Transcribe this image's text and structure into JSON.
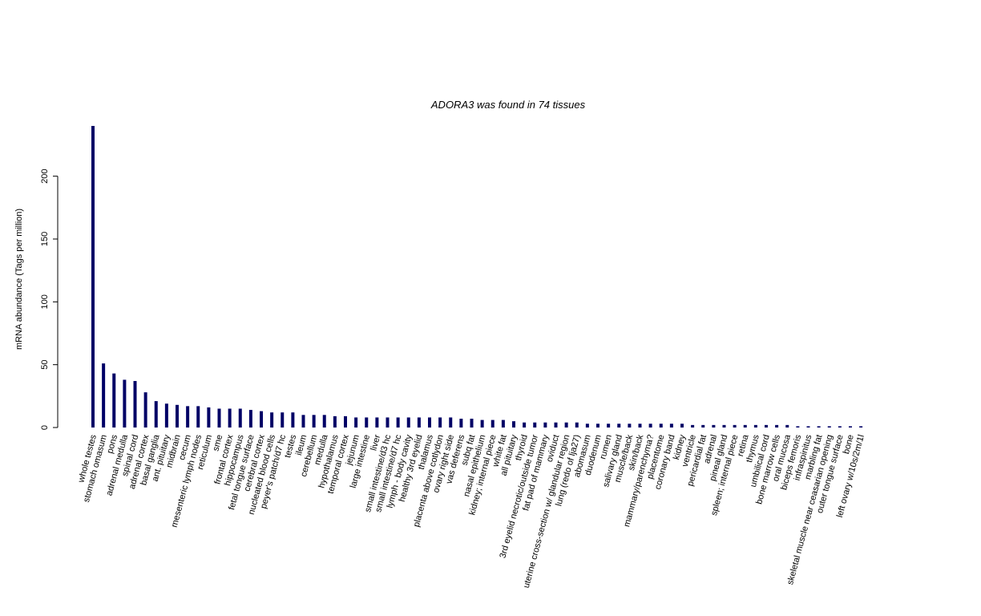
{
  "chart_data": {
    "type": "bar",
    "title": "ADORA3  was found in  74  tissues",
    "xlabel": "",
    "ylabel": "mRNA abundance (Tags per million)",
    "ylim": [
      0,
      240
    ],
    "yticks": [
      0,
      50,
      100,
      150,
      200
    ],
    "bar_color": "#000066",
    "grid": false,
    "categories": [
      "whole testes",
      "stomach omasum",
      "pons",
      "adrenal medulla",
      "spinal cord",
      "adrenal cortex",
      "basal ganglia",
      "ant. pituitary",
      "midbrain",
      "cecum",
      "mesenteric lymph nodes",
      "reticulum",
      "sme",
      "frontal cortex",
      "hippocampus",
      "fetal tongue surface",
      "cerebral cortex",
      "nucleated blood cells",
      "peyer's patch/d7 hc",
      "testes",
      "ileum",
      "cerebellum",
      "medulla",
      "hypothalamus",
      "temporal cortex",
      "jejunum",
      "large intestine",
      "liver",
      "small intestine/d3 hc",
      "small intestine/d7 hc",
      "lymph - body cavity",
      "healthy 3rd eyelid",
      "thalamus",
      "placenta above cotlydon",
      "ovary right side",
      "vas deferens",
      "subq fat",
      "nasal epithelium",
      "kidney; internal piece",
      "white fat",
      "all pituitary",
      "thyroid",
      "3rd eyelid necrotic/outside tumor",
      "fat pad of mammary",
      "oviduct",
      "uterine cross-section w/ glandular region",
      "lung (redo of lja27)",
      "abomasum",
      "duodenum",
      "rumen",
      "salivary gland",
      "muscle/back",
      "skin/back",
      "mammary/parenchyma?",
      "placentome",
      "coronary band",
      "kidney",
      "ventricle",
      "pericardial fat",
      "adrenal",
      "pineal gland",
      "spleen; internal piece",
      "retina",
      "thymus",
      "umbilical cord",
      "bone marrow cells",
      "oral mucosa",
      "biceps femoris",
      "infraspinitus",
      "marbling fat",
      "skeletal muscle near ceasarian opening",
      "outer tongue surface",
      "bone",
      "left ovary w/10s/2m/1l"
    ],
    "values": [
      240,
      51,
      43,
      38,
      37,
      28,
      21,
      19,
      18,
      17,
      17,
      16,
      15,
      15,
      15,
      14,
      13,
      12,
      12,
      12,
      10,
      10,
      10,
      9,
      9,
      8,
      8,
      8,
      8,
      8,
      8,
      8,
      8,
      8,
      8,
      7,
      7,
      6,
      6,
      6,
      5,
      4,
      4,
      4,
      4,
      4,
      4,
      3,
      3,
      3,
      3,
      3,
      3,
      3,
      3,
      3,
      3,
      2,
      2,
      2,
      2,
      2,
      2,
      2,
      2,
      2,
      2,
      1,
      1,
      1,
      1,
      1,
      1,
      1
    ]
  }
}
